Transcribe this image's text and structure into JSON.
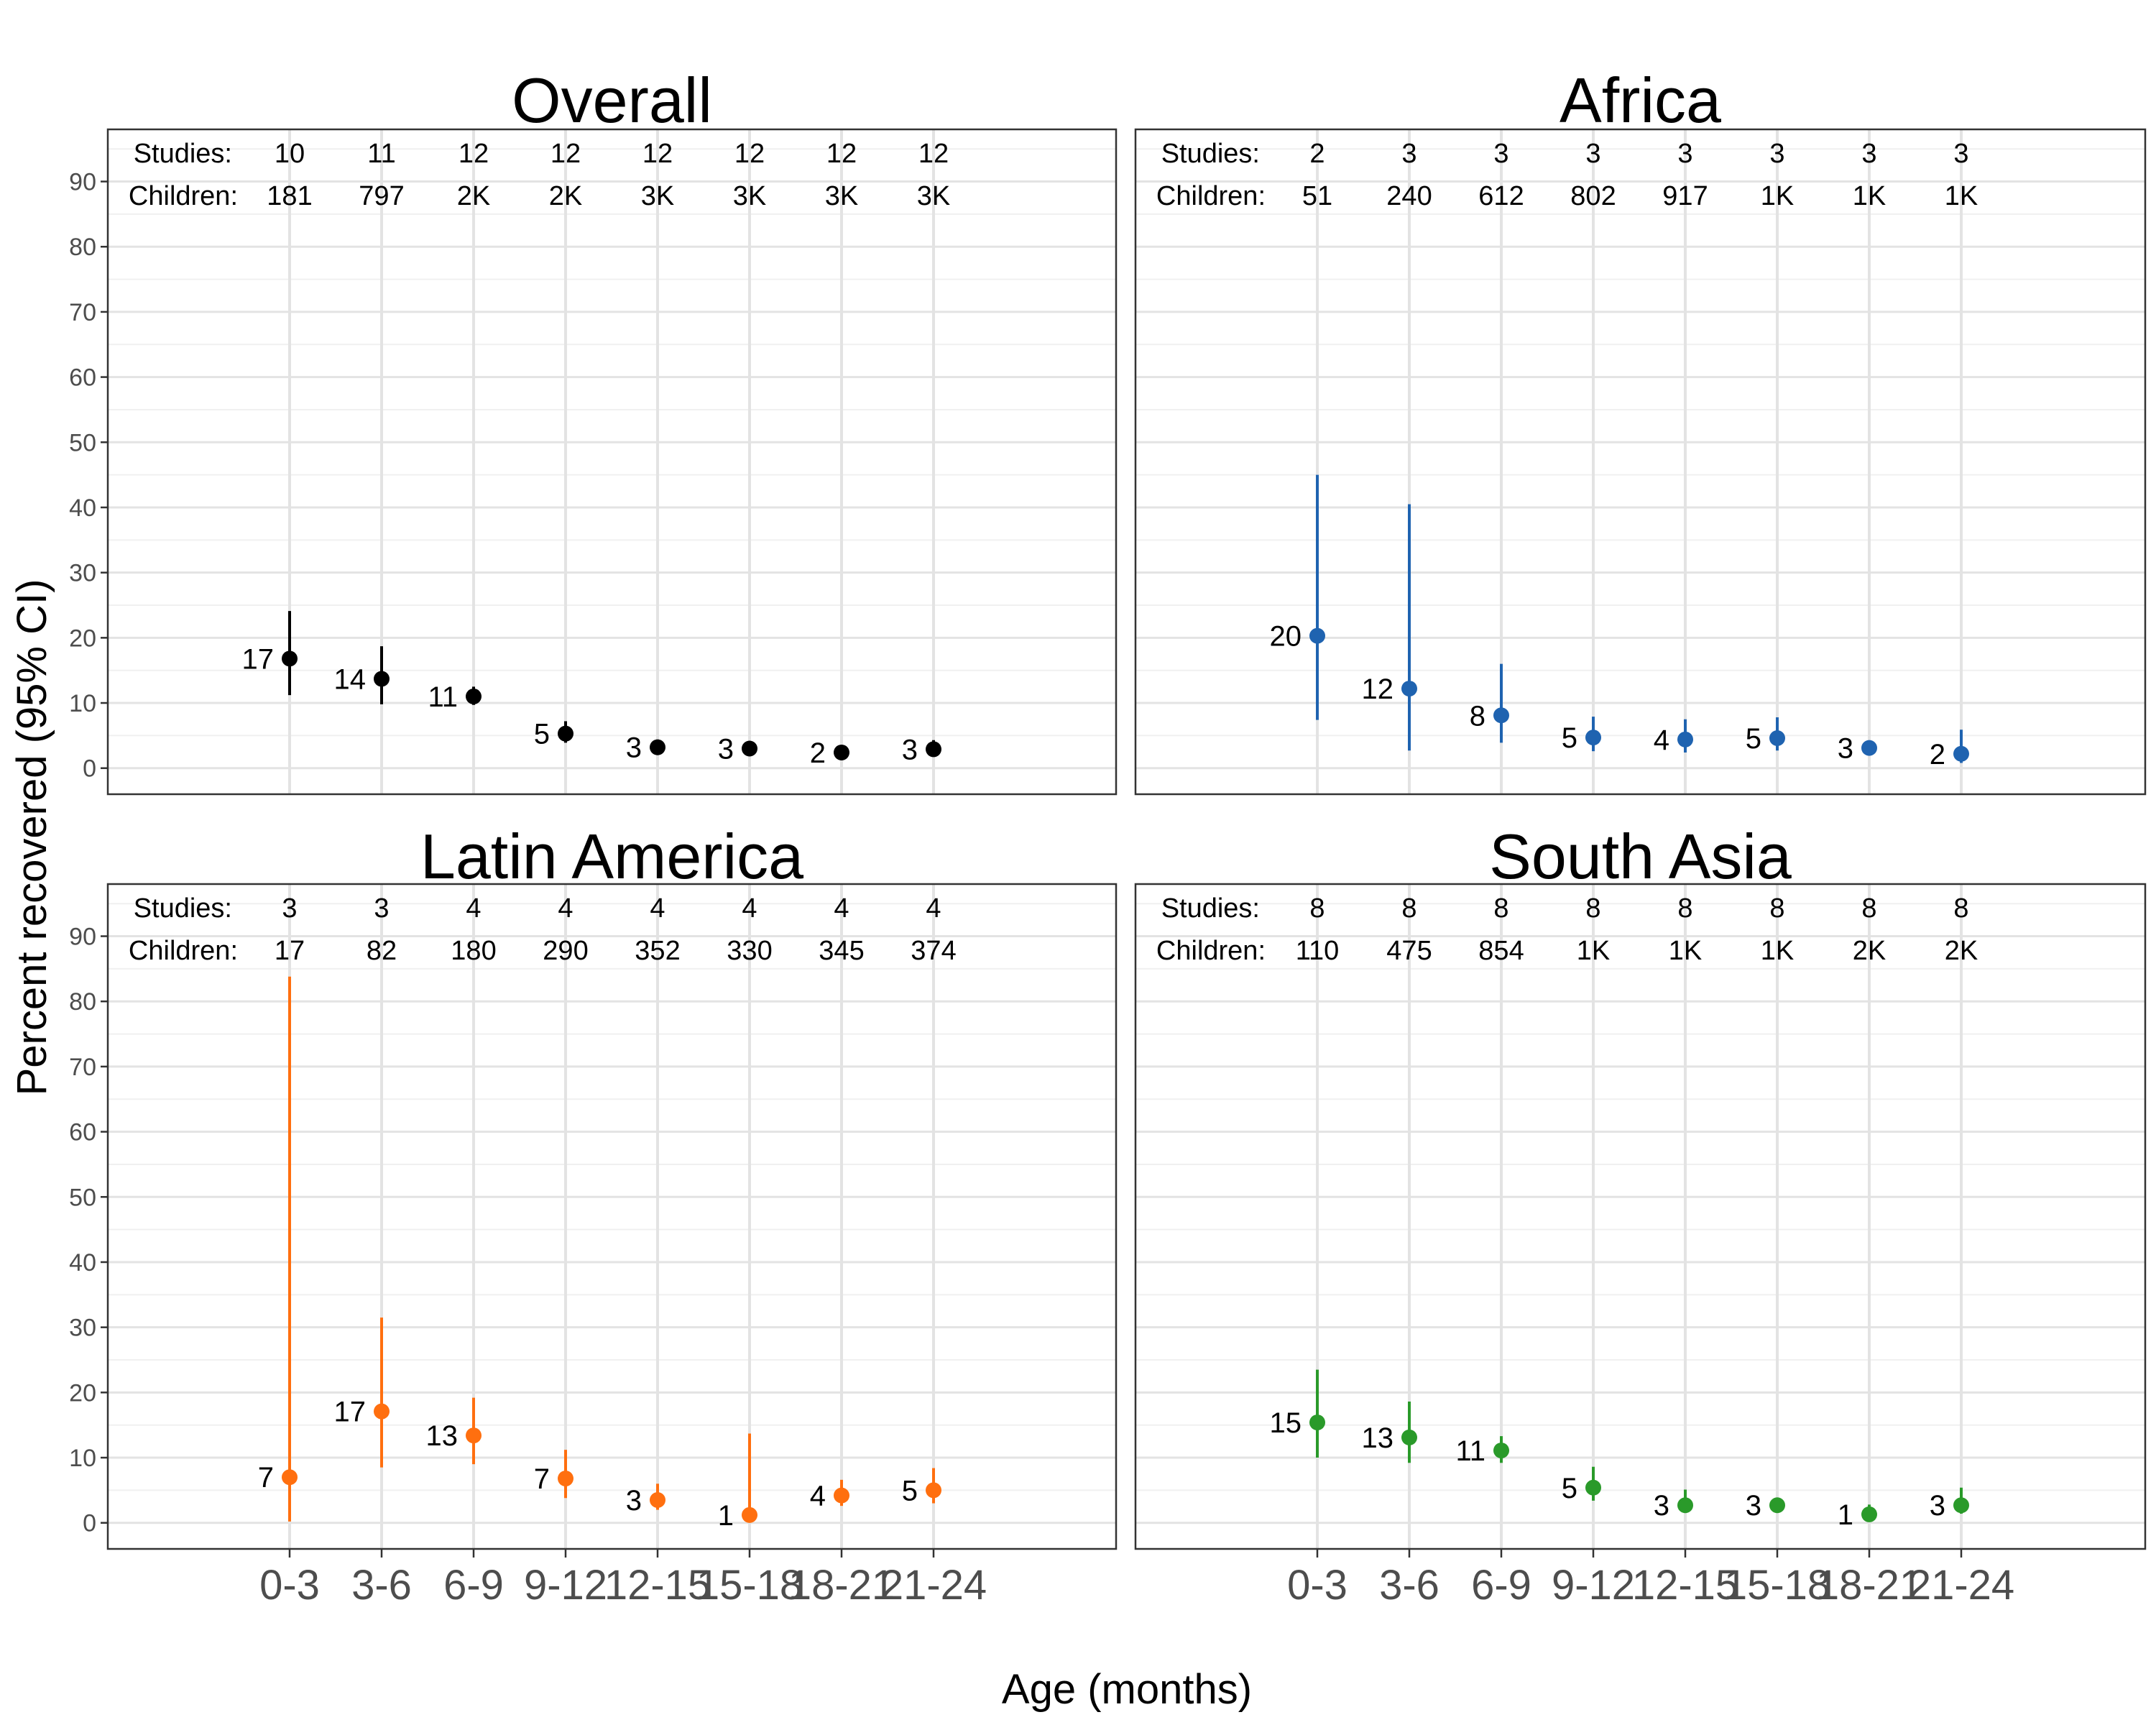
{
  "chart_data": {
    "type": "scatter",
    "ylabel": "Percent recovered (95% CI)",
    "xlabel": "Age (months)",
    "categories": [
      "0-3",
      "3-6",
      "6-9",
      "9-12",
      "12-15",
      "15-18",
      "18-21",
      "21-24"
    ],
    "y_ticks": [
      0,
      10,
      20,
      30,
      40,
      50,
      60,
      70,
      80,
      90
    ],
    "ylim": [
      -4,
      98
    ],
    "grid": true,
    "row_labels": {
      "studies": "Studies:",
      "children": "Children:"
    },
    "panels": [
      {
        "title": "Overall",
        "color": "#000000",
        "studies": [
          "10",
          "11",
          "12",
          "12",
          "12",
          "12",
          "12",
          "12"
        ],
        "children": [
          "181",
          "797",
          "2K",
          "2K",
          "3K",
          "3K",
          "3K",
          "3K"
        ],
        "estimate": [
          16.8,
          13.7,
          11.0,
          5.3,
          3.2,
          3.0,
          2.4,
          2.9
        ],
        "lower": [
          11.2,
          9.8,
          9.7,
          3.9,
          2.4,
          2.2,
          1.7,
          2.0
        ],
        "upper": [
          24.1,
          18.7,
          12.5,
          7.2,
          4.4,
          4.0,
          3.3,
          4.3
        ],
        "labels": [
          "17",
          "14",
          "11",
          "5",
          "3",
          "3",
          "2",
          "3"
        ]
      },
      {
        "title": "Africa",
        "color": "#1f63b0",
        "studies": [
          "2",
          "3",
          "3",
          "3",
          "3",
          "3",
          "3",
          "3"
        ],
        "children": [
          "51",
          "240",
          "612",
          "802",
          "917",
          "1K",
          "1K",
          "1K"
        ],
        "estimate": [
          20.3,
          12.2,
          8.1,
          4.7,
          4.4,
          4.6,
          3.1,
          2.2
        ],
        "lower": [
          7.4,
          2.7,
          3.9,
          2.6,
          2.4,
          2.7,
          2.4,
          0.8
        ],
        "upper": [
          45.0,
          40.5,
          16.0,
          7.9,
          7.5,
          7.8,
          3.9,
          5.9
        ],
        "labels": [
          "20",
          "12",
          "8",
          "5",
          "4",
          "5",
          "3",
          "2"
        ]
      },
      {
        "title": "Latin America",
        "color": "#ff6f0f",
        "studies": [
          "3",
          "3",
          "4",
          "4",
          "4",
          "4",
          "4",
          "4"
        ],
        "children": [
          "17",
          "82",
          "180",
          "290",
          "352",
          "330",
          "345",
          "374"
        ],
        "estimate": [
          7.0,
          17.1,
          13.4,
          6.8,
          3.5,
          1.2,
          4.2,
          5.0
        ],
        "lower": [
          0.2,
          8.5,
          9.0,
          3.8,
          2.0,
          0.1,
          2.6,
          3.0
        ],
        "upper": [
          83.8,
          31.5,
          19.2,
          11.2,
          6.0,
          13.7,
          6.6,
          8.4
        ],
        "labels": [
          "7",
          "17",
          "13",
          "7",
          "3",
          "1",
          "4",
          "5"
        ]
      },
      {
        "title": "South Asia",
        "color": "#2a9a2a",
        "studies": [
          "8",
          "8",
          "8",
          "8",
          "8",
          "8",
          "8",
          "8"
        ],
        "children": [
          "110",
          "475",
          "854",
          "1K",
          "1K",
          "1K",
          "2K",
          "2K"
        ],
        "estimate": [
          15.4,
          13.1,
          11.1,
          5.4,
          2.7,
          2.7,
          1.3,
          2.7
        ],
        "lower": [
          10.0,
          9.2,
          9.2,
          3.4,
          1.6,
          1.9,
          0.6,
          1.4
        ],
        "upper": [
          23.5,
          18.6,
          13.3,
          8.6,
          5.1,
          3.5,
          2.8,
          5.4
        ],
        "labels": [
          "15",
          "13",
          "11",
          "5",
          "3",
          "3",
          "1",
          "3"
        ]
      }
    ]
  }
}
